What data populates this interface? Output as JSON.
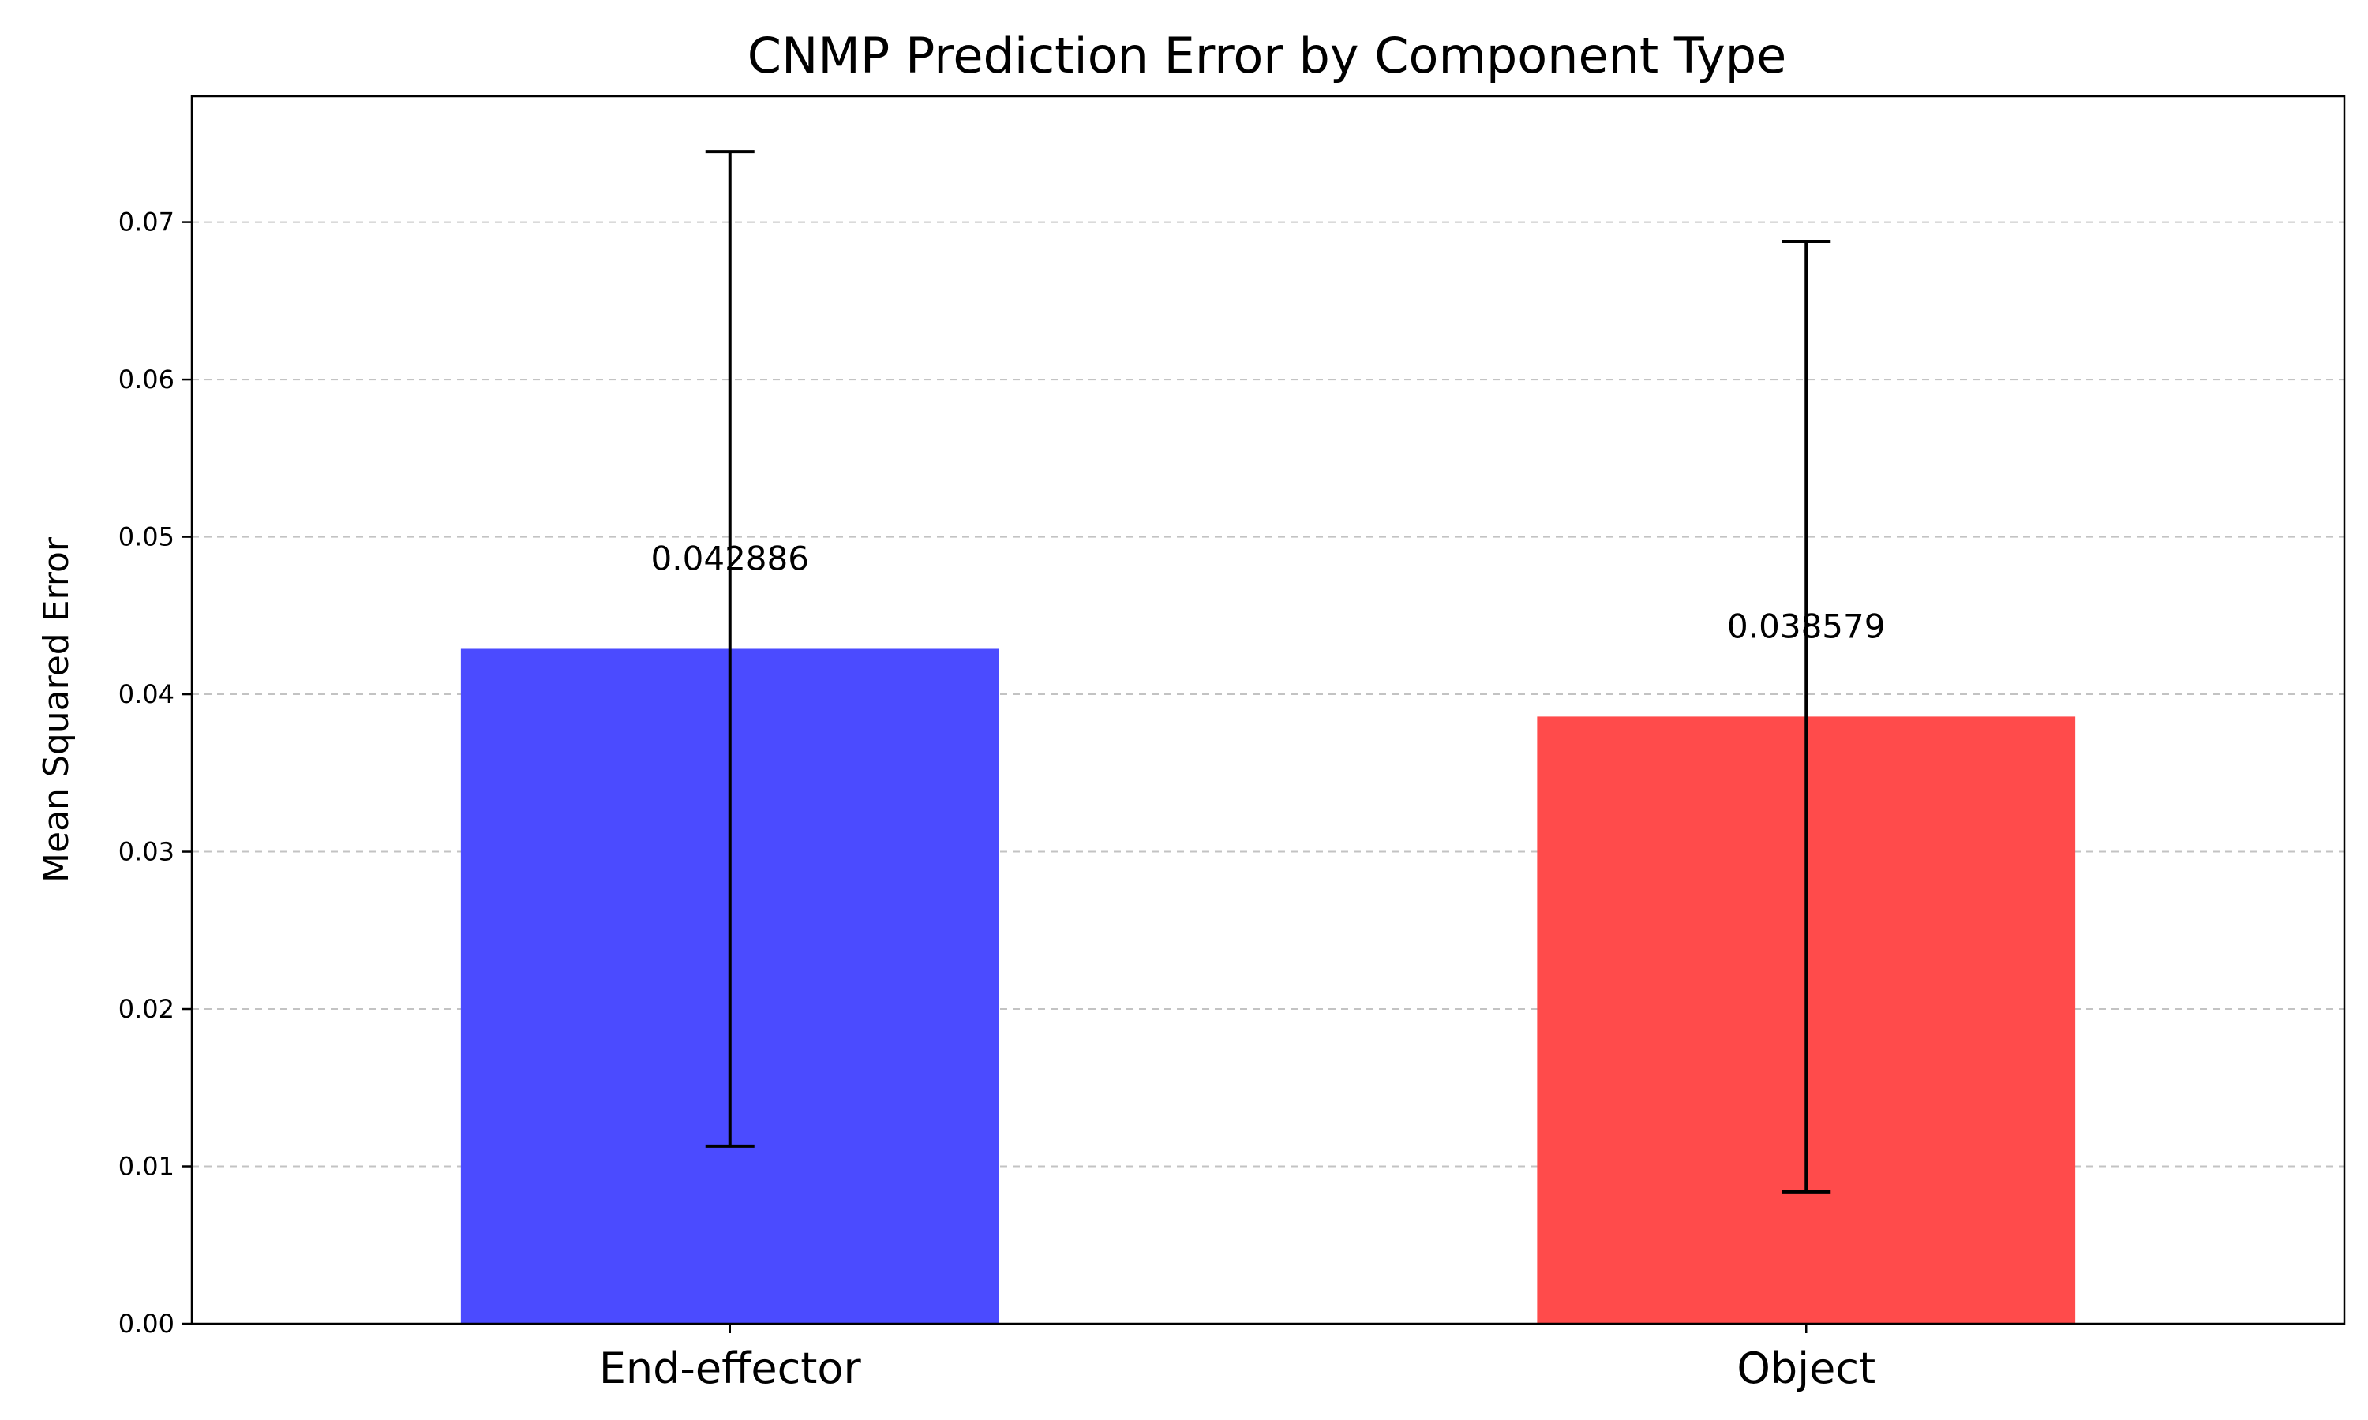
{
  "chart_data": {
    "type": "bar",
    "title": "CNMP Prediction Error by Component Type",
    "xlabel": "",
    "ylabel": "Mean Squared Error",
    "categories": [
      "End-effector",
      "Object"
    ],
    "values": [
      0.042886,
      0.038579
    ],
    "errors": [
      0.0316,
      0.0302
    ],
    "value_labels": [
      "0.042886",
      "0.038579"
    ],
    "colors": [
      "#4b4bff",
      "#ff4b4b"
    ],
    "ylim": [
      0,
      0.078
    ],
    "yticks": [
      0.0,
      0.01,
      0.02,
      0.03,
      0.04,
      0.05,
      0.06,
      0.07
    ],
    "ytick_labels": [
      "0.00",
      "0.01",
      "0.02",
      "0.03",
      "0.04",
      "0.05",
      "0.06",
      "0.07"
    ],
    "grid": "y-dashed"
  }
}
